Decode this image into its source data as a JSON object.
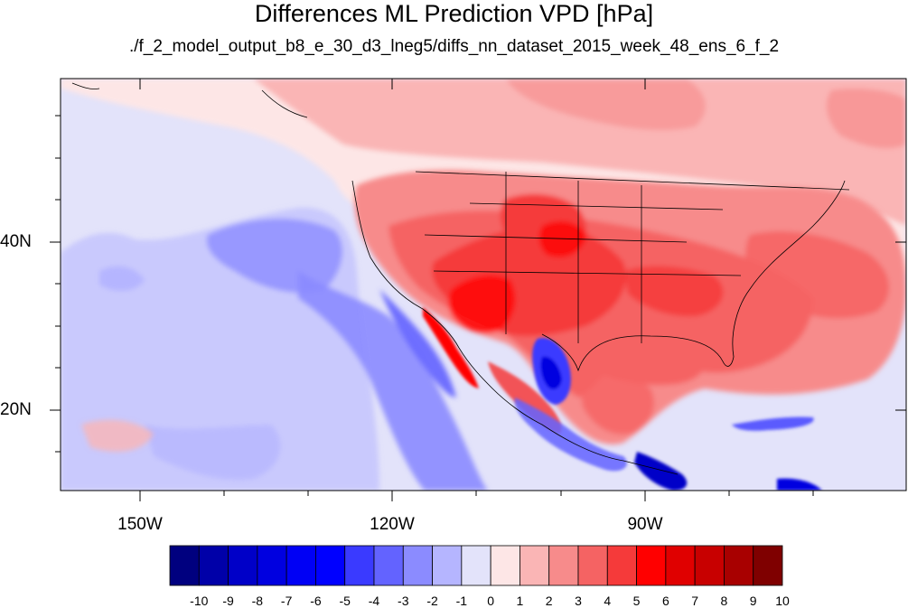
{
  "title": "Differences ML Prediction VPD [hPa]",
  "subtitle": "./f_2_model_output_b8_e_30_d3_lneg5/diffs_nn_dataset_2015_week_48_ens_6_f_2",
  "lat_labels": [
    "40N",
    "20N"
  ],
  "lon_labels": [
    "150W",
    "120W",
    "90W"
  ],
  "colorbar": {
    "labels": [
      "-10",
      "-9",
      "-8",
      "-7",
      "-6",
      "-5",
      "-4",
      "-3",
      "-2",
      "-1",
      "0",
      "1",
      "2",
      "3",
      "4",
      "5",
      "6",
      "7",
      "8",
      "9",
      "10"
    ],
    "colors": [
      "#00007f",
      "#0000a8",
      "#0000c8",
      "#0000e0",
      "#0000f5",
      "#0000ff",
      "#3a3aff",
      "#6363ff",
      "#8b8bff",
      "#b5b5ff",
      "#e3e3fa",
      "#fde6e6",
      "#fab5b5",
      "#f78b8b",
      "#f56363",
      "#f53a3a",
      "#ff0000",
      "#e00000",
      "#c80000",
      "#a80000",
      "#7f0000"
    ]
  }
}
